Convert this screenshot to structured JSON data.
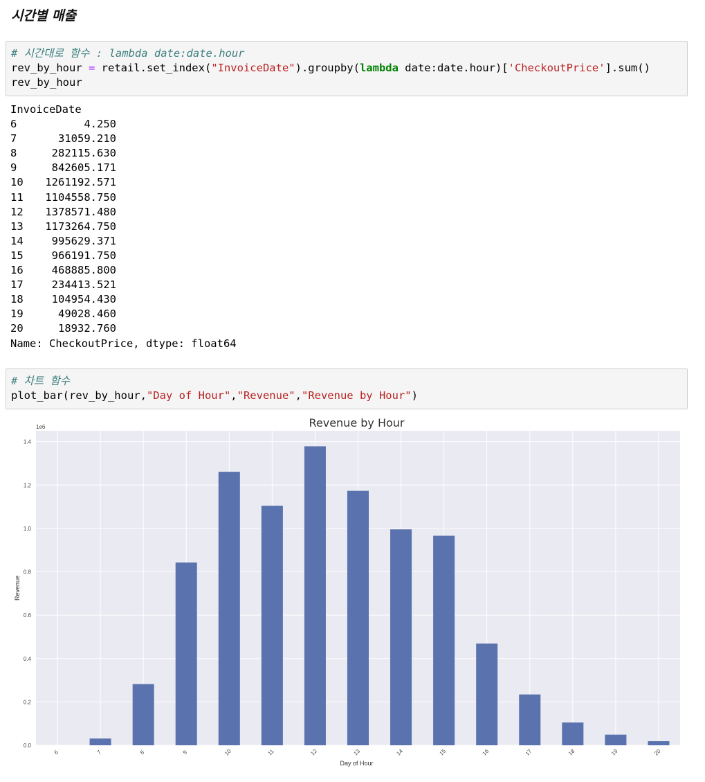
{
  "heading": "시간별 매출",
  "cell1": {
    "comment": "# 시간대로 함수 : lambda date:date.hour",
    "line2": {
      "a": "rev_by_hour ",
      "eq": "=",
      "b": " retail.set_index(",
      "s1": "\"InvoiceDate\"",
      "c": ").groupby(",
      "kw": "lambda",
      "d": " date:date.hour)[",
      "s2": "'CheckoutPrice'",
      "e": "].sum()"
    },
    "line3": "rev_by_hour"
  },
  "output": {
    "header": "InvoiceDate",
    "rows": [
      {
        "idx": "6",
        "val": "4.250"
      },
      {
        "idx": "7",
        "val": "31059.210"
      },
      {
        "idx": "8",
        "val": "282115.630"
      },
      {
        "idx": "9",
        "val": "842605.171"
      },
      {
        "idx": "10",
        "val": "1261192.571"
      },
      {
        "idx": "11",
        "val": "1104558.750"
      },
      {
        "idx": "12",
        "val": "1378571.480"
      },
      {
        "idx": "13",
        "val": "1173264.750"
      },
      {
        "idx": "14",
        "val": "995629.371"
      },
      {
        "idx": "15",
        "val": "966191.750"
      },
      {
        "idx": "16",
        "val": "468885.800"
      },
      {
        "idx": "17",
        "val": "234413.521"
      },
      {
        "idx": "18",
        "val": "104954.430"
      },
      {
        "idx": "19",
        "val": "49028.460"
      },
      {
        "idx": "20",
        "val": "18932.760"
      }
    ],
    "footer": "Name: CheckoutPrice, dtype: float64"
  },
  "cell2": {
    "comment": "# 차트 함수",
    "line2": {
      "a": "plot_bar(rev_by_hour,",
      "s1": "\"Day of Hour\"",
      "c1": ",",
      "s2": "\"Revenue\"",
      "c2": ",",
      "s3": "\"Revenue by Hour\"",
      "e": ")"
    }
  },
  "chart_data": {
    "type": "bar",
    "title": "Revenue by Hour",
    "xlabel": "Day of Hour",
    "ylabel": "Revenue",
    "scale_label": "1e6",
    "categories": [
      "6",
      "7",
      "8",
      "9",
      "10",
      "11",
      "12",
      "13",
      "14",
      "15",
      "16",
      "17",
      "18",
      "19",
      "20"
    ],
    "values": [
      4.25,
      31059.21,
      282115.63,
      842605.171,
      1261192.571,
      1104558.75,
      1378571.48,
      1173264.75,
      995629.371,
      966191.75,
      468885.8,
      234413.521,
      104954.43,
      49028.46,
      18932.76
    ],
    "yticks": [
      "0.0",
      "0.2",
      "0.4",
      "0.6",
      "0.8",
      "1.0",
      "1.2",
      "1.4"
    ],
    "ylim": [
      0,
      1.45
    ],
    "grid": true,
    "bar_color": "#5a72ad",
    "background_color": "#eaeaf2"
  }
}
